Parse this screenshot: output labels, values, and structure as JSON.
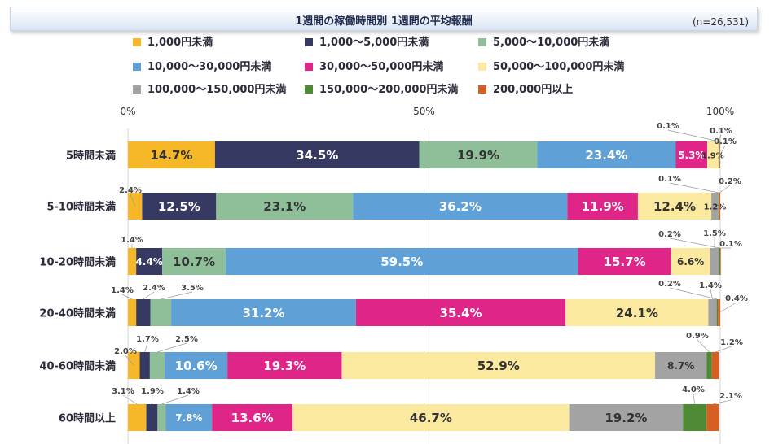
{
  "header": {
    "title": "1週間の稼働時間別 1週間の平均報酬",
    "sample_size": "(n=26,531)"
  },
  "colors": {
    "lt1000": "#f6b828",
    "1000_5000": "#363a62",
    "5000_10000": "#8fbf99",
    "10000_30000": "#5fa0d6",
    "30000_50000": "#e02589",
    "50000_100000": "#fbe9a0",
    "100000_150000": "#a3a3a3",
    "150000_200000": "#4e8a34",
    "200000_plus": "#d85f22"
  },
  "chart_data": {
    "type": "bar",
    "orientation": "horizontal",
    "stacked": true,
    "title": "1週間の稼働時間別 1週間の平均報酬",
    "sample_size": "(n=26,531)",
    "axis": {
      "range": [
        0,
        100
      ],
      "ticks": [
        {
          "value": 0,
          "label": "0%"
        },
        {
          "value": 50,
          "label": "50%"
        },
        {
          "value": 100,
          "label": "100%"
        }
      ]
    },
    "legend_position": "top",
    "categories": [
      "5時間未満",
      "5-10時間未満",
      "10-20時間未満",
      "20-40時間未満",
      "40-60時間未満",
      "60時間以上"
    ],
    "series": [
      {
        "name": "1,000円未満",
        "color_key": "lt1000",
        "label_color": "#333333",
        "values": [
          14.7,
          2.4,
          1.4,
          1.4,
          2.0,
          3.1
        ]
      },
      {
        "name": "1,000～5,000円未満",
        "color_key": "1000_5000",
        "label_color": "#ffffff",
        "values": [
          34.5,
          12.5,
          4.4,
          2.4,
          1.7,
          1.9
        ]
      },
      {
        "name": "5,000～10,000円未満",
        "color_key": "5000_10000",
        "label_color": "#333333",
        "values": [
          19.9,
          23.1,
          10.7,
          3.5,
          2.5,
          1.4
        ]
      },
      {
        "name": "10,000～30,000円未満",
        "color_key": "10000_30000",
        "label_color": "#ffffff",
        "values": [
          23.4,
          36.2,
          59.5,
          31.2,
          10.6,
          7.8
        ]
      },
      {
        "name": "30,000～50,000円未満",
        "color_key": "30000_50000",
        "label_color": "#ffffff",
        "values": [
          5.3,
          11.9,
          15.7,
          35.4,
          19.3,
          13.6
        ]
      },
      {
        "name": "50,000～100,000円未満",
        "color_key": "50000_100000",
        "label_color": "#333333",
        "values": [
          1.9,
          12.4,
          6.6,
          24.1,
          52.9,
          46.7
        ]
      },
      {
        "name": "100,000～150,000円未満",
        "color_key": "100000_150000",
        "label_color": "#333333",
        "values": [
          0.1,
          1.2,
          1.5,
          1.4,
          8.7,
          19.2
        ]
      },
      {
        "name": "150,000～200,000円未満",
        "color_key": "150000_200000",
        "label_color": "#333333",
        "values": [
          0.1,
          0.1,
          0.2,
          0.2,
          0.9,
          4.0
        ]
      },
      {
        "name": "200,000円以上",
        "color_key": "200000_plus",
        "label_color": "#333333",
        "values": [
          0.1,
          0.2,
          0.1,
          0.4,
          1.2,
          2.1
        ]
      }
    ],
    "data_labels": [
      [
        "14.7%",
        "34.5%",
        "19.9%",
        "23.4%",
        "5.3%",
        "1.9%",
        "0.1%",
        "0.1%",
        "0.1%"
      ],
      [
        "2.4%",
        "12.5%",
        "23.1%",
        "36.2%",
        "11.9%",
        "12.4%",
        "1.2%",
        "0.1%",
        "0.2%"
      ],
      [
        "1.4%",
        "4.4%",
        "10.7%",
        "59.5%",
        "15.7%",
        "6.6%",
        "1.5%",
        "0.2%",
        "0.1%"
      ],
      [
        "1.4%",
        "2.4%",
        "3.5%",
        "31.2%",
        "35.4%",
        "24.1%",
        "1.4%",
        "0.2%",
        "0.4%"
      ],
      [
        "2.0%",
        "1.7%",
        "2.5%",
        "10.6%",
        "19.3%",
        "52.9%",
        "8.7%",
        "0.9%",
        "1.2%"
      ],
      [
        "3.1%",
        "1.9%",
        "1.4%",
        "7.8%",
        "13.6%",
        "46.7%",
        "19.2%",
        "4.0%",
        "2.1%"
      ]
    ]
  }
}
